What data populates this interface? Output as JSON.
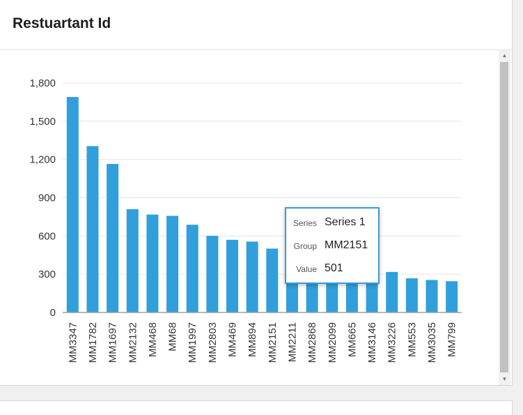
{
  "card": {
    "title": "Restuartant Id"
  },
  "chart_data": {
    "type": "bar",
    "title": "",
    "xlabel": "",
    "ylabel": "",
    "categories": [
      "MM3347",
      "MM1782",
      "MM1697",
      "MM2132",
      "MM468",
      "MM68",
      "MM1997",
      "MM2803",
      "MM469",
      "MM894",
      "MM2151",
      "MM2211",
      "MM2868",
      "MM2099",
      "MM665",
      "MM3146",
      "MM3226",
      "MM553",
      "MM3035",
      "MM799"
    ],
    "series": [
      {
        "name": "Series 1",
        "values": [
          1690,
          1305,
          1165,
          810,
          768,
          758,
          688,
          601,
          570,
          556,
          501,
          480,
          430,
          330,
          330,
          325,
          318,
          268,
          255,
          245
        ]
      }
    ],
    "ylim": [
      0,
      1800
    ],
    "yticks": [
      "0",
      "300",
      "600",
      "900",
      "1,200",
      "1,500",
      "1,800"
    ],
    "ytick_values": [
      0,
      300,
      600,
      900,
      1200,
      1500,
      1800
    ],
    "grid": true,
    "bar_color": "#309fdb"
  },
  "tooltip": {
    "series_key": "Series",
    "series_value": "Series 1",
    "group_key": "Group",
    "group_value": "MM2151",
    "value_key": "Value",
    "value_value": "501"
  },
  "scrollbar": {
    "up_icon": "triangle-up",
    "down_icon": "triangle-down"
  }
}
